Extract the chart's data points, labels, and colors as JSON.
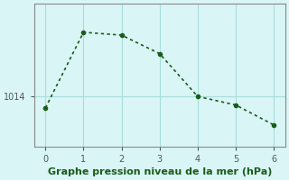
{
  "x": [
    0,
    1,
    2,
    3,
    4,
    5,
    6
  ],
  "y": [
    1013.2,
    1018.5,
    1018.3,
    1017.0,
    1014.0,
    1013.4,
    1012.0
  ],
  "line_color": "#1a5c1a",
  "marker": "o",
  "marker_size": 3,
  "linewidth": 1.2,
  "background_color": "#d9f5f5",
  "grid_color": "#aadddd",
  "xlabel": "Graphe pression niveau de la mer (hPa)",
  "xlabel_color": "#1a5c1a",
  "xlabel_fontsize": 8,
  "ytick_labels": [
    "1014"
  ],
  "ytick_values": [
    1014
  ],
  "ylim": [
    1010.5,
    1020.5
  ],
  "xlim": [
    -0.3,
    6.3
  ],
  "xtick_values": [
    0,
    1,
    2,
    3,
    4,
    5,
    6
  ],
  "tick_color": "#555555",
  "tick_fontsize": 7,
  "spine_color": "#888888"
}
